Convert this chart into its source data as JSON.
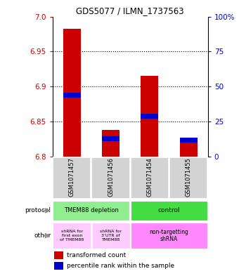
{
  "title": "GDS5077 / ILMN_1737563",
  "samples": [
    "GSM1071457",
    "GSM1071456",
    "GSM1071454",
    "GSM1071455"
  ],
  "red_values": [
    6.983,
    6.838,
    6.915,
    6.823
  ],
  "blue_values": [
    6.888,
    6.826,
    6.858,
    6.824
  ],
  "ymin": 6.8,
  "ymax": 7.0,
  "yticks_left": [
    6.8,
    6.85,
    6.9,
    6.95,
    7.0
  ],
  "yticks_right_vals": [
    0,
    25,
    50,
    75,
    100
  ],
  "yticks_right_labels": [
    "0",
    "25",
    "50",
    "75",
    "100%"
  ],
  "left_color": "#cc0000",
  "right_color": "#0000cc",
  "bar_width": 0.45,
  "grid_vals": [
    6.85,
    6.9,
    6.95
  ],
  "protocol_labels": [
    "TMEM88 depletion",
    "control"
  ],
  "protocol_colors": [
    "#90ee90",
    "#44dd44"
  ],
  "other_labels": [
    "shRNA for\nfirst exon\nof TMEM88",
    "shRNA for\n3’UTR of\nTMEM88",
    "non-targetting\nshRNA"
  ],
  "other_colors": [
    "#ffccff",
    "#ffccff",
    "#ff88ff"
  ],
  "legend_red": "transformed count",
  "legend_blue": "percentile rank within the sample",
  "sample_bg": "#d3d3d3"
}
